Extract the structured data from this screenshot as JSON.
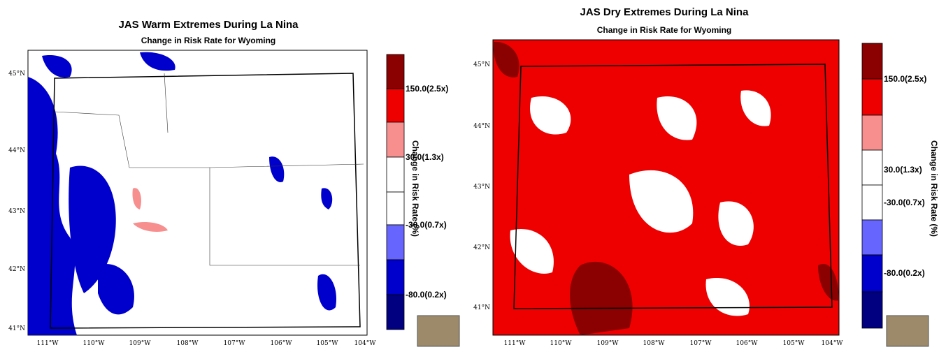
{
  "maps": [
    {
      "title": "JAS Warm Extremes During La Nina",
      "subtitle": "Change in Risk Rate for Wyoming",
      "lat_labels": [
        "45°N",
        "44°N",
        "43°N",
        "42°N",
        "41°N"
      ],
      "lon_labels": [
        "111°W",
        "110°W",
        "109°W",
        "108°W",
        "107°W",
        "106°W",
        "105°W",
        "104°W"
      ],
      "colorbar": {
        "title": "Change in Risk Rate (%)",
        "labels": [
          "150.0(2.5x)",
          "30.0(1.3x)",
          "-30.0(0.7x)",
          "-80.0(0.2x)"
        ]
      }
    },
    {
      "title": "JAS Dry Extremes During La Nina",
      "subtitle": "Change in Risk Rate for Wyoming",
      "lat_labels": [
        "45°N",
        "44°N",
        "43°N",
        "42°N",
        "41°N"
      ],
      "lon_labels": [
        "111°W",
        "110°W",
        "109°W",
        "108°W",
        "107°W",
        "106°W",
        "105°W",
        "104°W"
      ],
      "colorbar": {
        "title": "Change in Risk Rate (%)",
        "labels": [
          "150.0(2.5x)",
          "30.0(1.3x)",
          "-30.0(0.7x)",
          "-80.0(0.2x)"
        ]
      }
    }
  ]
}
